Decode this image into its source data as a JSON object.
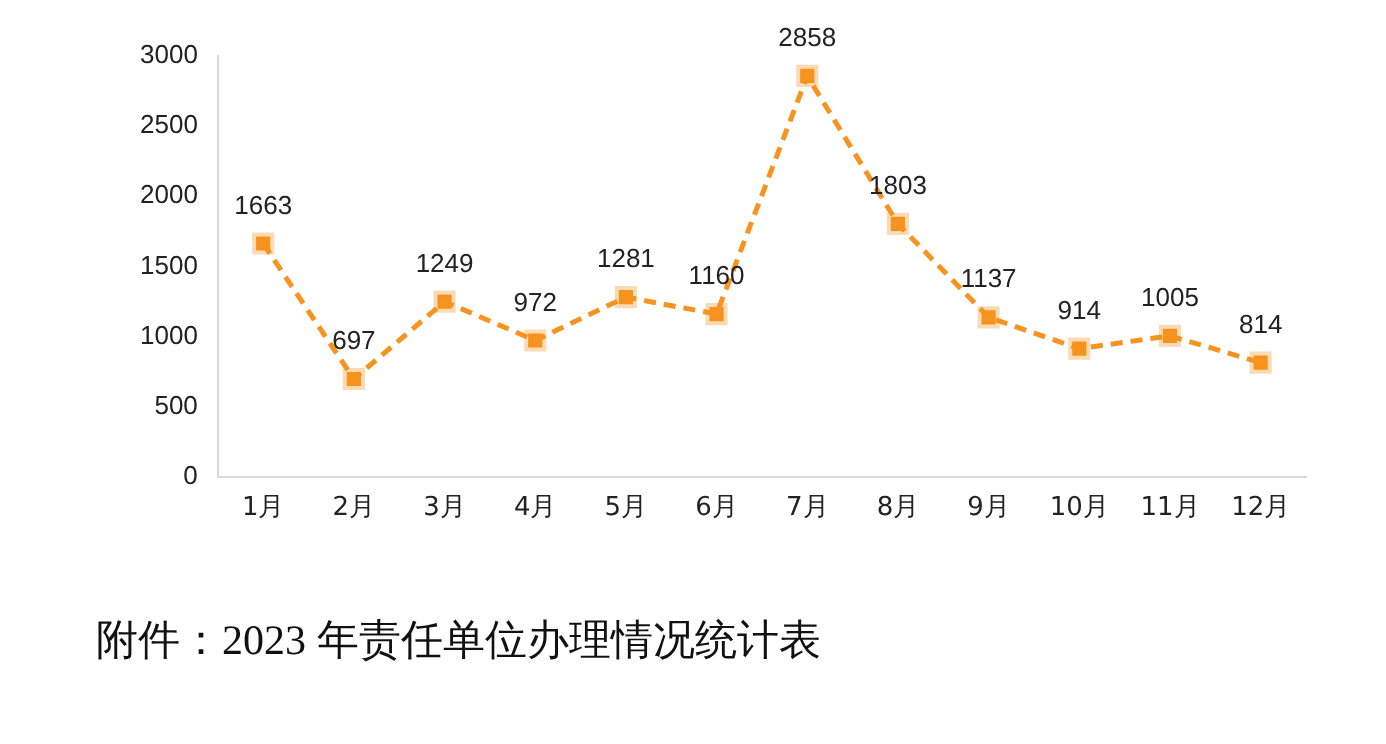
{
  "chart_data": {
    "type": "line",
    "categories": [
      "1月",
      "2月",
      "3月",
      "4月",
      "5月",
      "6月",
      "7月",
      "8月",
      "9月",
      "10月",
      "11月",
      "12月"
    ],
    "series": [
      {
        "color": "#f7931e",
        "values": [
          1663,
          697,
          1249,
          972,
          1281,
          1160,
          2858,
          1803,
          1137,
          914,
          1005,
          814
        ]
      }
    ],
    "ylim": [
      0,
      3000
    ],
    "yticks": [
      0,
      500,
      1000,
      1500,
      2000,
      2500,
      3000
    ],
    "grid": false,
    "legend": false,
    "marker": "square",
    "line_style": "dashed",
    "data_labels": true,
    "annotations": [
      "附件：2023 年责任单位办理情况统计表"
    ]
  }
}
